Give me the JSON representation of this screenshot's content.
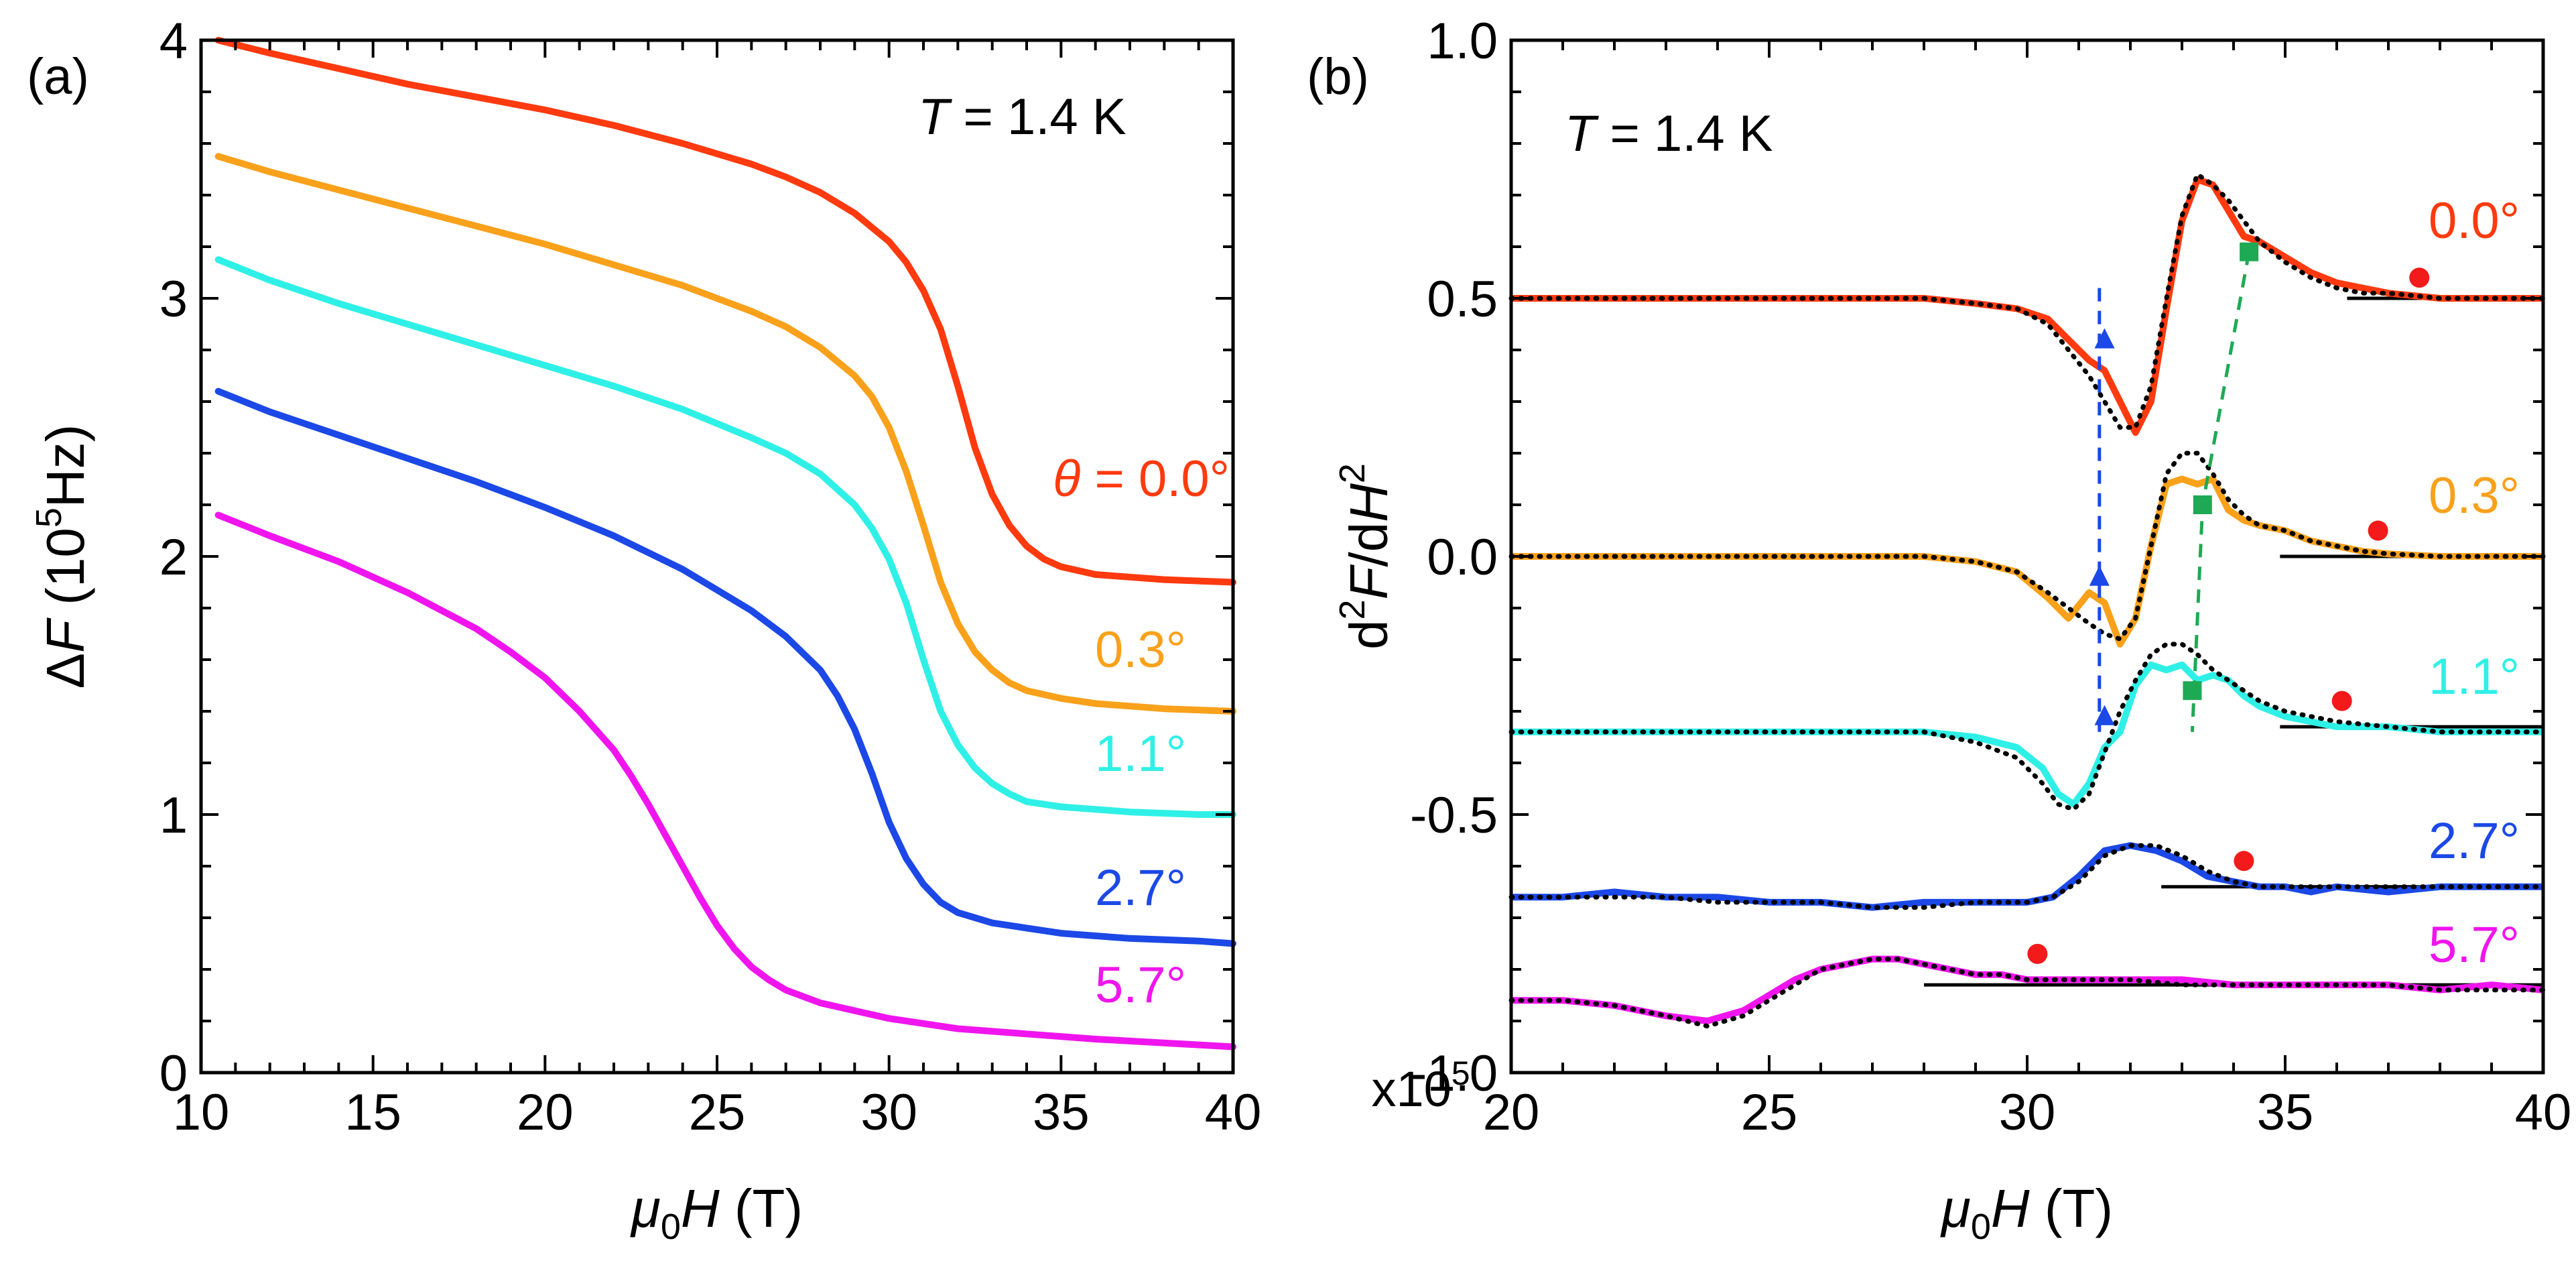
{
  "chart_data": [
    {
      "panel": "(a)",
      "type": "line",
      "xlabel": "μ0H (T)",
      "ylabel": "ΔF (10^5 Hz)",
      "xlim": [
        10,
        40
      ],
      "ylim": [
        0,
        4
      ],
      "xticks": [
        "10",
        "15",
        "20",
        "25",
        "30",
        "35",
        "40"
      ],
      "yticks": [
        "0",
        "1",
        "2",
        "3",
        "4"
      ],
      "annotation": "T = 1.4 K",
      "series": [
        {
          "name": "θ = 0.0°",
          "label": "0.0°",
          "color": "#ff3a0f",
          "x": [
            10.5,
            12,
            14,
            16,
            18,
            20,
            22,
            24,
            26,
            27,
            28,
            29,
            30,
            30.5,
            31,
            31.5,
            32,
            32.5,
            33,
            33.5,
            34,
            34.5,
            35,
            36,
            37,
            38,
            39,
            40
          ],
          "y": [
            4.0,
            3.95,
            3.89,
            3.83,
            3.78,
            3.73,
            3.67,
            3.6,
            3.52,
            3.47,
            3.41,
            3.33,
            3.22,
            3.14,
            3.03,
            2.88,
            2.66,
            2.42,
            2.24,
            2.12,
            2.04,
            1.99,
            1.96,
            1.93,
            1.92,
            1.91,
            1.905,
            1.9
          ]
        },
        {
          "name": "0.3°",
          "label": "0.3°",
          "color": "#f9a11b",
          "x": [
            10.5,
            12,
            14,
            16,
            18,
            20,
            22,
            24,
            26,
            27,
            28,
            29,
            29.5,
            30,
            30.5,
            31,
            31.5,
            32,
            32.5,
            33,
            33.5,
            34,
            35,
            36,
            37,
            38,
            39,
            40
          ],
          "y": [
            3.55,
            3.49,
            3.42,
            3.35,
            3.28,
            3.21,
            3.13,
            3.05,
            2.95,
            2.89,
            2.81,
            2.7,
            2.62,
            2.5,
            2.33,
            2.12,
            1.9,
            1.74,
            1.63,
            1.56,
            1.51,
            1.48,
            1.45,
            1.43,
            1.42,
            1.41,
            1.405,
            1.4
          ]
        },
        {
          "name": "1.1°",
          "label": "1.1°",
          "color": "#2ff0e6",
          "x": [
            10.5,
            12,
            14,
            16,
            18,
            20,
            22,
            24,
            26,
            27,
            28,
            29,
            29.5,
            30,
            30.5,
            31,
            31.5,
            32,
            32.5,
            33,
            33.5,
            34,
            35,
            36,
            37,
            38,
            39,
            40
          ],
          "y": [
            3.15,
            3.07,
            2.98,
            2.9,
            2.82,
            2.74,
            2.66,
            2.57,
            2.46,
            2.4,
            2.32,
            2.2,
            2.11,
            1.99,
            1.82,
            1.6,
            1.4,
            1.27,
            1.18,
            1.12,
            1.08,
            1.05,
            1.03,
            1.02,
            1.01,
            1.005,
            1.0,
            1.0
          ]
        },
        {
          "name": "2.7°",
          "label": "2.7°",
          "color": "#1b48e6",
          "x": [
            10.5,
            12,
            14,
            16,
            18,
            20,
            22,
            24,
            25,
            26,
            27,
            28,
            28.5,
            29,
            29.5,
            30,
            30.5,
            31,
            31.5,
            32,
            33,
            34,
            35,
            36,
            37,
            38,
            39,
            40
          ],
          "y": [
            2.64,
            2.56,
            2.47,
            2.38,
            2.29,
            2.19,
            2.08,
            1.95,
            1.87,
            1.79,
            1.69,
            1.56,
            1.46,
            1.33,
            1.16,
            0.97,
            0.83,
            0.73,
            0.66,
            0.62,
            0.58,
            0.56,
            0.54,
            0.53,
            0.52,
            0.515,
            0.51,
            0.5
          ]
        },
        {
          "name": "5.7°",
          "label": "5.7°",
          "color": "#f015ee",
          "x": [
            10.5,
            12,
            14,
            16,
            18,
            19,
            20,
            21,
            22,
            22.5,
            23,
            23.5,
            24,
            24.5,
            25,
            25.5,
            26,
            26.5,
            27,
            28,
            29,
            30,
            31,
            32,
            34,
            36,
            38,
            40
          ],
          "y": [
            2.16,
            2.08,
            1.98,
            1.86,
            1.72,
            1.63,
            1.53,
            1.4,
            1.25,
            1.15,
            1.04,
            0.92,
            0.8,
            0.68,
            0.57,
            0.48,
            0.41,
            0.36,
            0.32,
            0.27,
            0.24,
            0.21,
            0.19,
            0.17,
            0.15,
            0.13,
            0.115,
            0.1
          ]
        }
      ]
    },
    {
      "panel": "(b)",
      "type": "line",
      "xlabel": "μ0H (T)",
      "ylabel": "d²F/dH²",
      "xlim": [
        20,
        40
      ],
      "ylim": [
        -1.0,
        1.0
      ],
      "xticks": [
        "20",
        "25",
        "30",
        "35",
        "40"
      ],
      "yticks": [
        "-1.0",
        "-0.5",
        "0.0",
        "0.5",
        "1.0"
      ],
      "scale_label": "x10^5",
      "annotation": "T = 1.4 K",
      "fit_color": "#000000",
      "series": [
        {
          "name": "0.0°",
          "label": "0.0°",
          "color": "#ff3a0f",
          "x": [
            20,
            22,
            24,
            26,
            28,
            29,
            29.8,
            30.4,
            30.8,
            31.2,
            31.5,
            31.8,
            32.1,
            32.4,
            32.7,
            33,
            33.3,
            33.6,
            33.9,
            34.2,
            34.5,
            35,
            35.5,
            36,
            36.5,
            37,
            38,
            39,
            40
          ],
          "y": [
            0.5,
            0.5,
            0.5,
            0.5,
            0.5,
            0.49,
            0.48,
            0.46,
            0.42,
            0.38,
            0.36,
            0.3,
            0.24,
            0.3,
            0.48,
            0.65,
            0.73,
            0.72,
            0.67,
            0.62,
            0.61,
            0.58,
            0.55,
            0.53,
            0.52,
            0.51,
            0.5,
            0.5,
            0.5
          ],
          "fit_y": [
            0.5,
            0.5,
            0.5,
            0.5,
            0.5,
            0.49,
            0.48,
            0.45,
            0.4,
            0.35,
            0.3,
            0.25,
            0.25,
            0.33,
            0.5,
            0.66,
            0.74,
            0.72,
            0.69,
            0.65,
            0.61,
            0.57,
            0.54,
            0.52,
            0.51,
            0.51,
            0.5,
            0.5,
            0.5
          ],
          "baseline": [
            36.2,
            40,
            0.5
          ],
          "triangle": [
            31.5,
            0.42
          ],
          "square": [
            34.3,
            0.59
          ],
          "circle": [
            37.6,
            0.54
          ]
        },
        {
          "name": "0.3°",
          "label": "0.3°",
          "color": "#f9a11b",
          "x": [
            20,
            22,
            24,
            26,
            28,
            29,
            29.8,
            30.4,
            30.8,
            31.2,
            31.5,
            31.8,
            32.1,
            32.4,
            32.7,
            33,
            33.3,
            33.6,
            33.9,
            34.2,
            34.5,
            35,
            35.5,
            36,
            36.5,
            37,
            38,
            39,
            40
          ],
          "y": [
            0.0,
            0.0,
            0.0,
            0.0,
            0.0,
            -0.01,
            -0.03,
            -0.08,
            -0.12,
            -0.07,
            -0.09,
            -0.17,
            -0.12,
            0.02,
            0.14,
            0.15,
            0.14,
            0.15,
            0.09,
            0.07,
            0.06,
            0.05,
            0.03,
            0.02,
            0.01,
            0.005,
            0.0,
            0.0,
            0.0
          ],
          "fit_y": [
            0.0,
            0.0,
            0.0,
            0.0,
            0.0,
            -0.01,
            -0.03,
            -0.07,
            -0.1,
            -0.13,
            -0.15,
            -0.16,
            -0.12,
            0.02,
            0.16,
            0.2,
            0.2,
            0.16,
            0.11,
            0.08,
            0.06,
            0.05,
            0.03,
            0.02,
            0.01,
            0.005,
            0.0,
            0.0,
            0.0
          ],
          "baseline": [
            34.9,
            40,
            0.0
          ],
          "triangle": [
            31.4,
            -0.04
          ],
          "square": [
            33.4,
            0.1
          ],
          "circle": [
            36.8,
            0.05
          ]
        },
        {
          "name": "1.1°",
          "label": "1.1°",
          "color": "#2ff0e6",
          "x": [
            20,
            22,
            24,
            26,
            28,
            29,
            29.8,
            30.3,
            30.6,
            30.9,
            31.2,
            31.5,
            31.8,
            32.1,
            32.4,
            32.7,
            33,
            33.3,
            33.6,
            33.9,
            34.2,
            34.5,
            35,
            35.5,
            36,
            37,
            38,
            39,
            40
          ],
          "y": [
            -0.34,
            -0.34,
            -0.34,
            -0.34,
            -0.34,
            -0.35,
            -0.37,
            -0.41,
            -0.46,
            -0.48,
            -0.44,
            -0.37,
            -0.34,
            -0.25,
            -0.21,
            -0.22,
            -0.21,
            -0.24,
            -0.23,
            -0.24,
            -0.27,
            -0.29,
            -0.31,
            -0.32,
            -0.33,
            -0.33,
            -0.34,
            -0.34,
            -0.34
          ],
          "fit_y": [
            -0.34,
            -0.34,
            -0.34,
            -0.34,
            -0.34,
            -0.36,
            -0.39,
            -0.44,
            -0.48,
            -0.49,
            -0.46,
            -0.38,
            -0.3,
            -0.24,
            -0.19,
            -0.17,
            -0.17,
            -0.19,
            -0.22,
            -0.24,
            -0.26,
            -0.28,
            -0.3,
            -0.31,
            -0.32,
            -0.33,
            -0.34,
            -0.34,
            -0.34
          ],
          "baseline": [
            34.9,
            40,
            -0.33
          ],
          "triangle": [
            31.5,
            -0.31
          ],
          "square": [
            33.2,
            -0.26
          ],
          "circle": [
            36.1,
            -0.28
          ]
        },
        {
          "name": "2.7°",
          "label": "2.7°",
          "color": "#1b48e6",
          "x": [
            20,
            21,
            22,
            23,
            24,
            25,
            26,
            27,
            28,
            29,
            30,
            30.5,
            31,
            31.5,
            32,
            32.5,
            33,
            33.5,
            34,
            34.5,
            35,
            35.5,
            36,
            37,
            38,
            39,
            40
          ],
          "y": [
            -0.66,
            -0.66,
            -0.65,
            -0.66,
            -0.66,
            -0.67,
            -0.67,
            -0.68,
            -0.67,
            -0.67,
            -0.67,
            -0.66,
            -0.62,
            -0.57,
            -0.56,
            -0.57,
            -0.59,
            -0.62,
            -0.63,
            -0.64,
            -0.64,
            -0.65,
            -0.64,
            -0.65,
            -0.64,
            -0.64,
            -0.64
          ],
          "fit_y": [
            -0.66,
            -0.66,
            -0.66,
            -0.66,
            -0.67,
            -0.67,
            -0.67,
            -0.68,
            -0.68,
            -0.67,
            -0.67,
            -0.66,
            -0.63,
            -0.58,
            -0.56,
            -0.56,
            -0.58,
            -0.61,
            -0.63,
            -0.64,
            -0.64,
            -0.64,
            -0.64,
            -0.64,
            -0.64,
            -0.64,
            -0.64
          ],
          "baseline": [
            32.6,
            40,
            -0.64
          ],
          "circle": [
            34.2,
            -0.59
          ]
        },
        {
          "name": "5.7°",
          "label": "5.7°",
          "color": "#f015ee",
          "x": [
            20,
            21,
            22,
            23,
            23.8,
            24.5,
            25,
            25.5,
            26,
            26.5,
            27,
            27.5,
            28,
            28.5,
            29,
            29.5,
            30,
            31,
            32,
            33,
            34,
            35,
            36,
            37,
            38,
            39,
            40
          ],
          "y": [
            -0.86,
            -0.86,
            -0.87,
            -0.89,
            -0.9,
            -0.88,
            -0.85,
            -0.82,
            -0.8,
            -0.79,
            -0.78,
            -0.78,
            -0.79,
            -0.8,
            -0.81,
            -0.81,
            -0.82,
            -0.82,
            -0.82,
            -0.82,
            -0.83,
            -0.83,
            -0.83,
            -0.83,
            -0.84,
            -0.83,
            -0.84
          ],
          "fit_y": [
            -0.86,
            -0.86,
            -0.87,
            -0.89,
            -0.91,
            -0.89,
            -0.86,
            -0.83,
            -0.8,
            -0.79,
            -0.78,
            -0.78,
            -0.79,
            -0.8,
            -0.81,
            -0.81,
            -0.82,
            -0.82,
            -0.82,
            -0.83,
            -0.83,
            -0.83,
            -0.83,
            -0.83,
            -0.84,
            -0.84,
            -0.84
          ],
          "baseline": [
            28.0,
            40,
            -0.83
          ],
          "circle": [
            30.2,
            -0.77
          ]
        }
      ],
      "guides": [
        {
          "color": "#1b48e6",
          "points": [
            [
              31.4,
              0.52
            ],
            [
              31.4,
              -0.34
            ]
          ]
        },
        {
          "color": "#1eaa55",
          "points": [
            [
              34.3,
              0.59
            ],
            [
              33.4,
              0.1
            ],
            [
              33.2,
              -0.34
            ]
          ]
        }
      ]
    }
  ]
}
